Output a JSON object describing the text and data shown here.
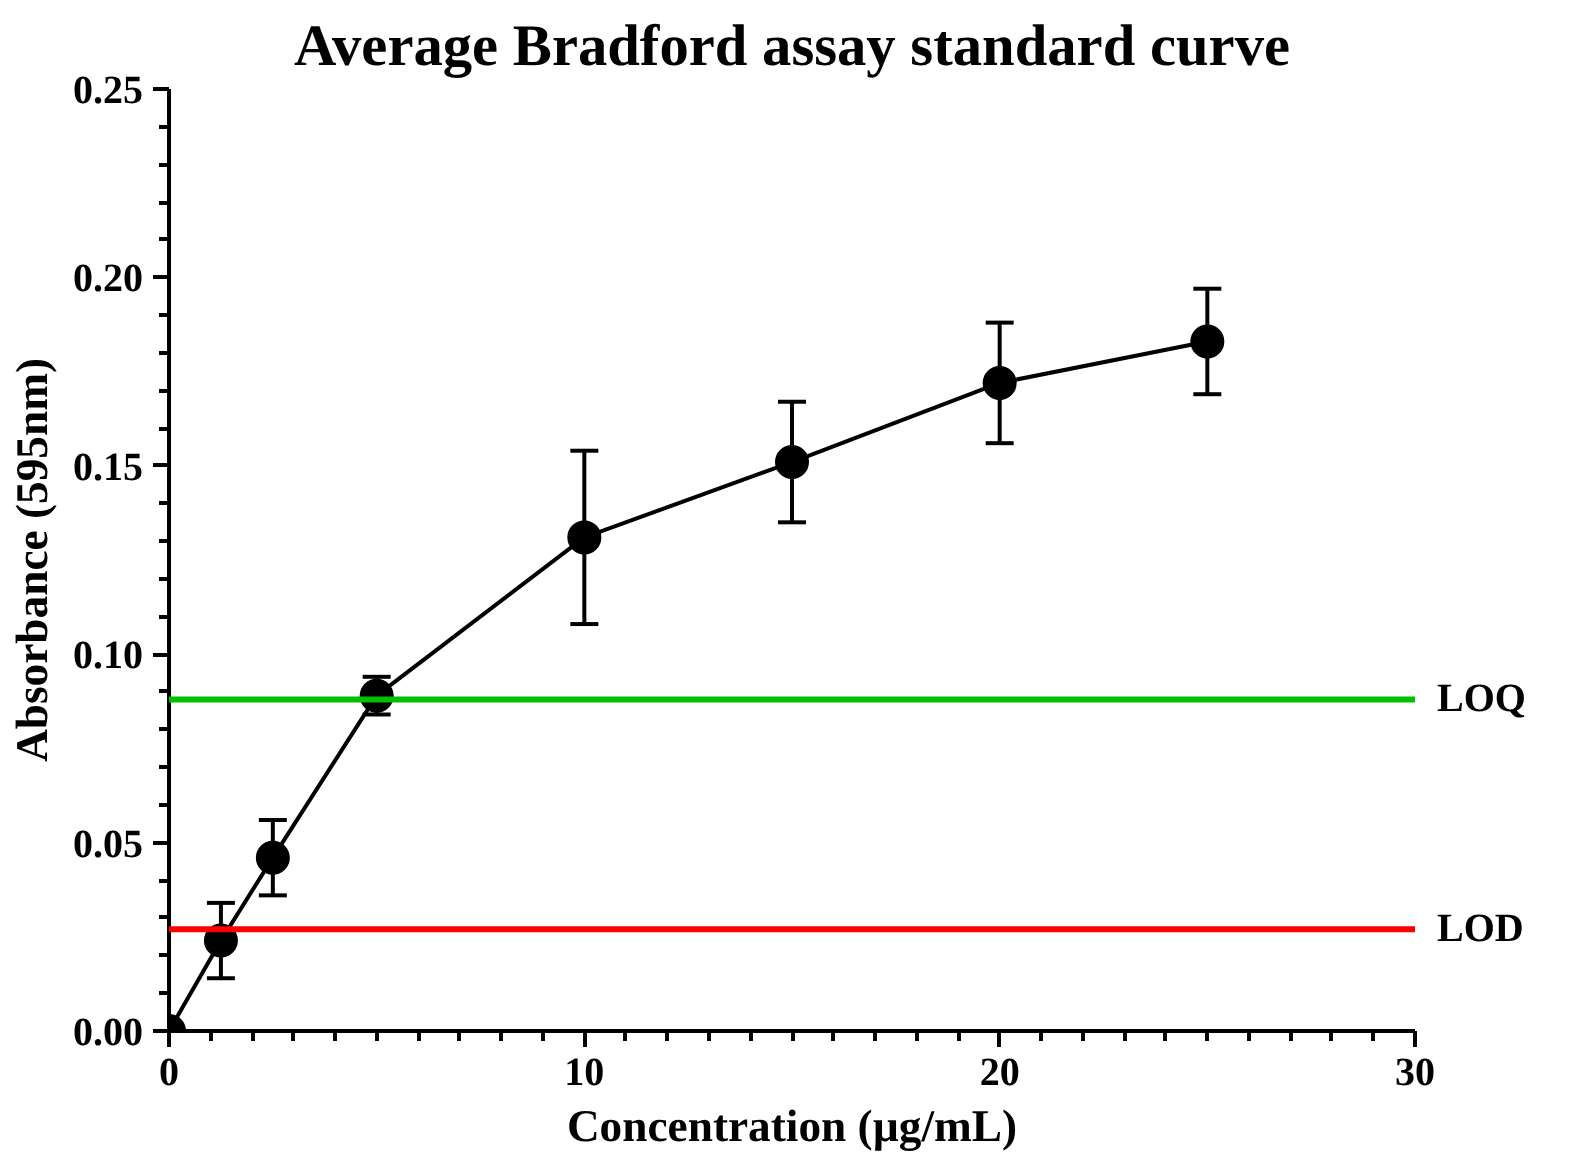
{
  "chart_data": {
    "type": "line",
    "title": "Average Bradford assay standard curve",
    "xlabel": "Concentration (µg/mL)",
    "ylabel": "Absorbance (595nm)",
    "x": [
      0,
      1.25,
      2.5,
      5,
      10,
      15,
      20,
      25
    ],
    "series": [
      {
        "color": "#000000",
        "values": [
          0,
          0.024,
          0.046,
          0.089,
          0.131,
          0.151,
          0.172,
          0.183
        ],
        "errors": [
          null,
          0.01,
          0.01,
          0.005,
          0.023,
          0.016,
          0.016,
          0.014
        ]
      }
    ],
    "marker": "circle",
    "line_style": "solid",
    "xlim": [
      0,
      30
    ],
    "xticks": [
      0,
      10,
      20,
      30
    ],
    "ylim": [
      0,
      0.25
    ],
    "yticks": [
      {
        "value": 0,
        "label": "0.00"
      },
      {
        "value": 0.05,
        "label": "0.05"
      },
      {
        "value": 0.1,
        "label": "0.10"
      },
      {
        "value": 0.15,
        "label": "0.15"
      },
      {
        "value": 0.2,
        "label": "0.20"
      },
      {
        "value": 0.25,
        "label": "0.25"
      }
    ],
    "ref_lines": [
      {
        "axis": "y",
        "value": 0.088,
        "label": "LOQ",
        "color": "#00c000"
      },
      {
        "axis": "y",
        "value": 0.027,
        "label": "LOD",
        "color": "#ff0000"
      }
    ],
    "grid": false
  }
}
